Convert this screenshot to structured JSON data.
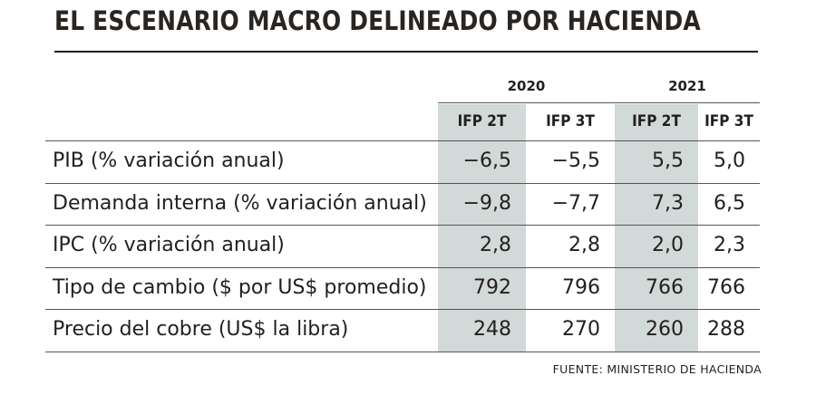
{
  "header": {
    "title": "EL ESCENARIO MACRO DELINEADO POR HACIENDA"
  },
  "table": {
    "years": [
      "2020",
      "2021"
    ],
    "subheaders": [
      "IFP 2T",
      "IFP 3T",
      "IFP 2T",
      "IFP 3T"
    ],
    "rows": [
      [
        "PIB (% variación anual)",
        "−6,5",
        "−5,5",
        "5,5",
        "5,0"
      ],
      [
        "Demanda interna (% variación anual)",
        "−9,8",
        "−7,7",
        "7,3",
        "6,5"
      ],
      [
        "IPC (% variación anual)",
        "2,8",
        "2,8",
        "2,0",
        "2,3"
      ],
      [
        "Tipo de cambio ($ por US$ promedio)",
        "792",
        "796",
        "766",
        "766"
      ],
      [
        "Precio del cobre (US$ la libra)",
        "248",
        "270",
        "260",
        "288"
      ]
    ]
  },
  "footer": {
    "source": "FUENTE: MINISTERIO DE HACIENDA"
  }
}
